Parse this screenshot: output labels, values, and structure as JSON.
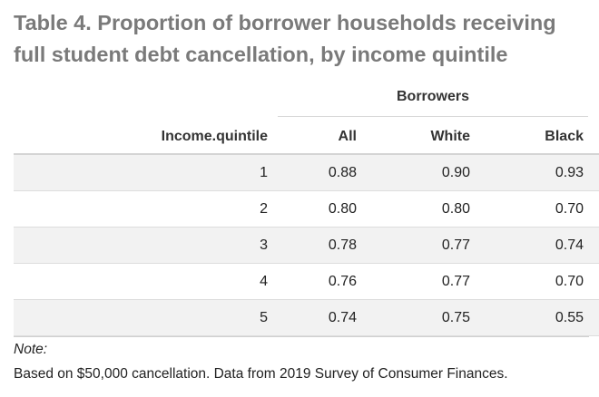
{
  "title": "Table 4. Proportion of borrower households receiving full student debt cancellation, by income quintile",
  "spanner_label": "Borrowers",
  "columns": [
    "Income.quintile",
    "All",
    "White",
    "Black"
  ],
  "rows": [
    [
      "1",
      "0.88",
      "0.90",
      "0.93"
    ],
    [
      "2",
      "0.80",
      "0.80",
      "0.70"
    ],
    [
      "3",
      "0.78",
      "0.77",
      "0.74"
    ],
    [
      "4",
      "0.76",
      "0.77",
      "0.70"
    ],
    [
      "5",
      "0.74",
      "0.75",
      "0.55"
    ]
  ],
  "note": {
    "label": "Note:",
    "text": "Based on $50,000 cancellation. Data from 2019 Survey of Consumer Finances."
  },
  "colors": {
    "title": "#7a7a7a",
    "stripe": "#f2f2f2",
    "rule": "#dddddd"
  }
}
